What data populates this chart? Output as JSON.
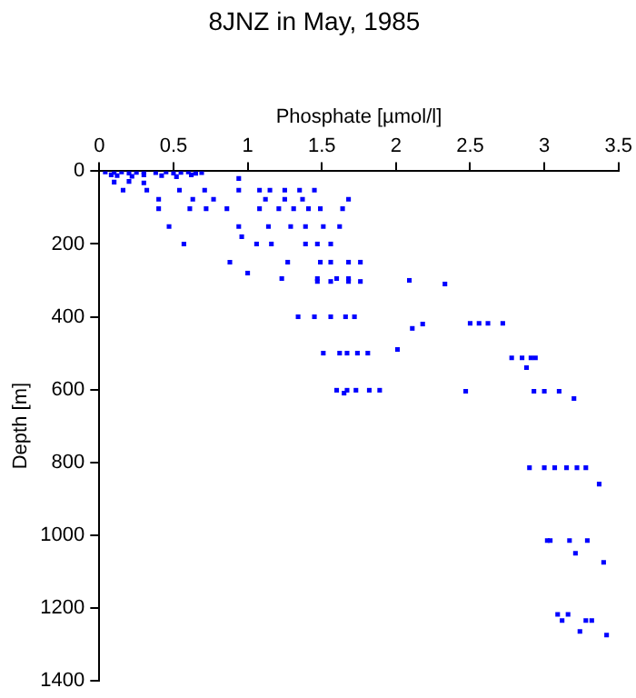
{
  "chart_data": {
    "type": "scatter",
    "title": "8JNZ in May, 1985",
    "xlabel": "Phosphate [µmol/l]",
    "ylabel": "Depth [m]",
    "xlim": [
      0,
      3.5
    ],
    "xticks": [
      0,
      0.5,
      1,
      1.5,
      2,
      2.5,
      3,
      3.5
    ],
    "ylim": [
      1400,
      0
    ],
    "yticks": [
      0,
      200,
      400,
      600,
      800,
      1000,
      1200,
      1400
    ],
    "grid": false,
    "legend": false,
    "marker": "square",
    "series": [
      {
        "color": "#0000ff",
        "x": [
          0.04,
          0.1,
          0.15,
          0.2,
          0.25,
          0.3,
          0.38,
          0.45,
          0.5,
          0.55,
          0.6,
          0.65,
          0.69,
          0.08,
          0.12,
          0.22,
          0.3,
          0.42,
          0.52,
          0.62,
          0.94,
          0.1,
          0.2,
          0.3,
          0.16,
          0.32,
          0.54,
          0.71,
          0.94,
          1.08,
          1.15,
          1.25,
          1.35,
          1.45,
          0.4,
          0.63,
          0.77,
          1.12,
          1.25,
          1.37,
          1.68,
          0.4,
          0.61,
          0.72,
          0.86,
          1.08,
          1.21,
          1.31,
          1.41,
          1.49,
          1.64,
          0.47,
          0.94,
          1.14,
          1.29,
          1.39,
          1.51,
          1.62,
          0.96,
          0.57,
          1.06,
          1.16,
          1.39,
          1.47,
          1.56,
          0.88,
          1.27,
          1.49,
          1.56,
          1.68,
          1.76,
          1.0,
          1.23,
          1.47,
          1.6,
          1.68,
          1.47,
          1.56,
          1.68,
          1.76,
          2.09,
          2.33,
          1.34,
          1.45,
          1.56,
          1.66,
          1.72,
          2.11,
          2.18,
          1.51,
          1.62,
          1.67,
          1.74,
          1.81,
          2.01,
          1.6,
          1.67,
          1.73,
          1.82,
          1.89,
          1.65,
          2.5,
          2.56,
          2.62,
          2.72,
          2.78,
          2.85,
          2.91,
          2.94,
          2.88,
          2.47,
          2.93,
          3.0,
          3.1,
          3.2,
          2.9,
          3.0,
          3.07,
          3.15,
          3.22,
          3.28,
          3.37,
          3.02,
          3.04,
          3.17,
          3.29,
          3.21,
          3.4,
          3.09,
          3.16,
          3.12,
          3.28,
          3.32,
          3.24,
          3.42
        ],
        "values": [
          2,
          3,
          2,
          5,
          3,
          2,
          4,
          2,
          5,
          3,
          2,
          6,
          4,
          10,
          12,
          14,
          10,
          12,
          15,
          10,
          20,
          30,
          28,
          32,
          52,
          52,
          52,
          52,
          52,
          52,
          52,
          52,
          52,
          52,
          77,
          77,
          77,
          77,
          77,
          77,
          77,
          103,
          103,
          103,
          103,
          103,
          103,
          103,
          103,
          103,
          103,
          152,
          152,
          152,
          152,
          152,
          152,
          152,
          180,
          200,
          200,
          200,
          200,
          200,
          200,
          250,
          250,
          250,
          250,
          250,
          250,
          280,
          295,
          295,
          295,
          295,
          303,
          303,
          303,
          303,
          300,
          310,
          400,
          400,
          400,
          400,
          400,
          432,
          420,
          500,
          500,
          500,
          500,
          500,
          490,
          602,
          602,
          602,
          602,
          602,
          610,
          418,
          418,
          418,
          418,
          513,
          513,
          513,
          513,
          540,
          605,
          605,
          605,
          605,
          625,
          815,
          815,
          815,
          815,
          815,
          815,
          860,
          1015,
          1015,
          1015,
          1015,
          1050,
          1075,
          1218,
          1218,
          1235,
          1235,
          1235,
          1265,
          1275
        ]
      }
    ]
  }
}
